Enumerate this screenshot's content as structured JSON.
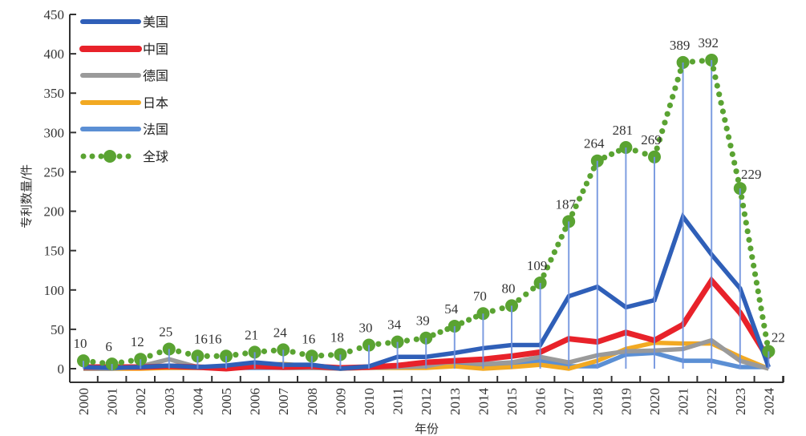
{
  "chart_data": {
    "type": "line",
    "title": "",
    "xlabel": "年份",
    "ylabel": "专利数量/件",
    "ylim": [
      0,
      450
    ],
    "yticks": [
      0,
      50,
      100,
      150,
      200,
      250,
      300,
      350,
      400,
      450
    ],
    "grid": false,
    "legend_position": "top-left",
    "x": [
      "2000",
      "2001",
      "2002",
      "2003",
      "2004",
      "2005",
      "2006",
      "2007",
      "2008",
      "2009",
      "2010",
      "2011",
      "2012",
      "2013",
      "2014",
      "2015",
      "2016",
      "2017",
      "2018",
      "2019",
      "2020",
      "2021",
      "2022",
      "2023",
      "2024"
    ],
    "series": [
      {
        "name": "美国",
        "color": "#2f5fb8",
        "style": "solid",
        "values": [
          2,
          1,
          2,
          4,
          2,
          4,
          8,
          5,
          5,
          0,
          3,
          15,
          15,
          20,
          26,
          30,
          30,
          92,
          104,
          78,
          87,
          193,
          145,
          102,
          2
        ]
      },
      {
        "name": "中国",
        "color": "#e8222a",
        "style": "solid",
        "values": [
          2,
          2,
          2,
          3,
          2,
          0,
          3,
          2,
          3,
          1,
          2,
          4,
          8,
          10,
          12,
          16,
          21,
          38,
          34,
          46,
          36,
          56,
          112,
          71,
          12
        ]
      },
      {
        "name": "德国",
        "color": "#9a9a9a",
        "style": "solid",
        "values": [
          0,
          0,
          3,
          12,
          2,
          1,
          2,
          1,
          1,
          0,
          1,
          2,
          3,
          10,
          6,
          8,
          15,
          8,
          17,
          22,
          23,
          25,
          36,
          10,
          0
        ]
      },
      {
        "name": "日本",
        "color": "#f2a922",
        "style": "solid",
        "values": [
          0,
          0,
          0,
          1,
          1,
          1,
          4,
          6,
          3,
          0,
          1,
          1,
          1,
          3,
          0,
          2,
          5,
          0,
          10,
          25,
          33,
          32,
          32,
          15,
          0
        ]
      },
      {
        "name": "法国",
        "color": "#5b8fd4",
        "style": "solid",
        "values": [
          1,
          1,
          1,
          1,
          1,
          1,
          1,
          1,
          1,
          1,
          2,
          2,
          5,
          7,
          4,
          5,
          10,
          3,
          3,
          18,
          20,
          10,
          10,
          2,
          2
        ]
      },
      {
        "name": "全球",
        "color": "#5aa332",
        "style": "dotted-marker",
        "values": [
          10,
          6,
          12,
          25,
          16,
          16,
          21,
          24,
          16,
          18,
          30,
          34,
          39,
          54,
          70,
          80,
          109,
          187,
          264,
          281,
          269,
          389,
          392,
          229,
          22
        ],
        "data_labels": [
          "10",
          "6",
          "12",
          "25",
          "16",
          "16",
          "21",
          "24",
          "16",
          "18",
          "30",
          "34",
          "39",
          "54",
          "70",
          "80",
          "109",
          "187",
          "264",
          "281",
          "269",
          "389",
          "392",
          "229",
          "22"
        ]
      }
    ],
    "drop_lines": {
      "series": "全球",
      "color": "#6f93de"
    }
  }
}
